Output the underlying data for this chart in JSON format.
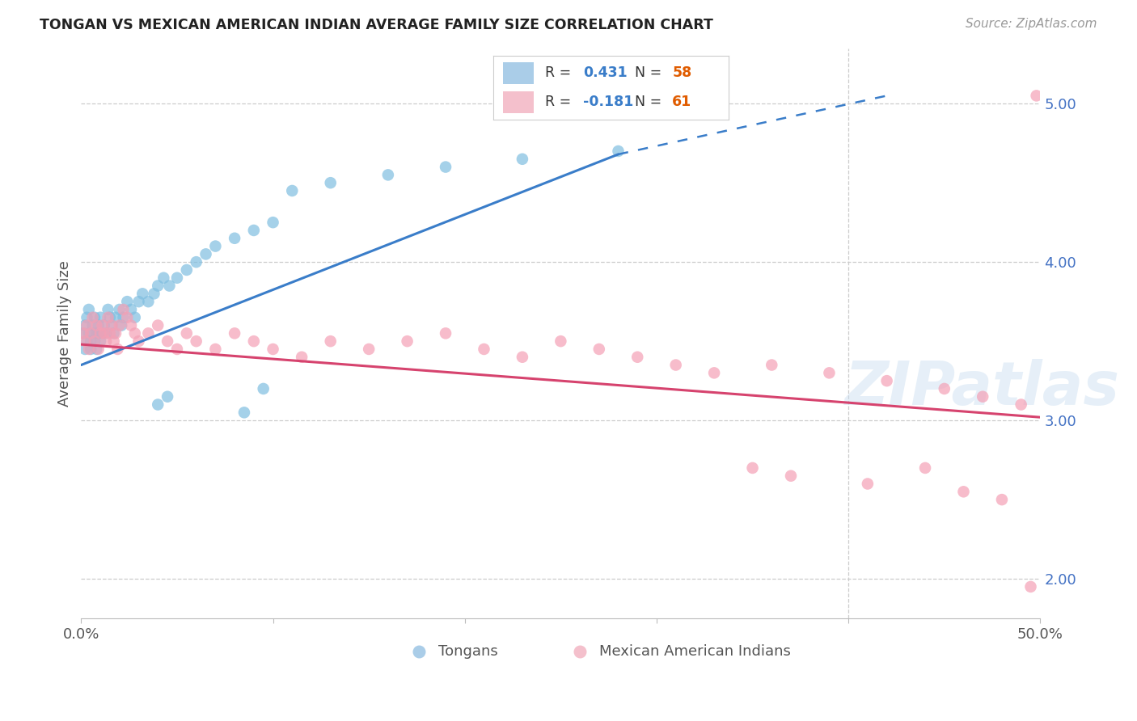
{
  "title": "TONGAN VS MEXICAN AMERICAN INDIAN AVERAGE FAMILY SIZE CORRELATION CHART",
  "source": "Source: ZipAtlas.com",
  "ylabel": "Average Family Size",
  "xlim": [
    0.0,
    0.5
  ],
  "ylim": [
    1.75,
    5.35
  ],
  "yticks": [
    2.0,
    3.0,
    4.0,
    5.0
  ],
  "xticks": [
    0.0,
    0.1,
    0.2,
    0.3,
    0.4,
    0.5
  ],
  "xticklabels": [
    "0.0%",
    "",
    "",
    "",
    "",
    "50.0%"
  ],
  "watermark": "ZIPatlas",
  "blue_color": "#7fbee0",
  "pink_color": "#f4a0b5",
  "blue_line_color": "#3a7dc9",
  "pink_line_color": "#d6436e",
  "blue_legend_color": "#aacde8",
  "pink_legend_color": "#f4c0cc",
  "r_color": "#3a7dc9",
  "n_color": "#e05c00",
  "tongans_x": [
    0.001,
    0.002,
    0.002,
    0.003,
    0.003,
    0.004,
    0.004,
    0.005,
    0.005,
    0.006,
    0.006,
    0.007,
    0.007,
    0.008,
    0.008,
    0.009,
    0.009,
    0.01,
    0.01,
    0.011,
    0.012,
    0.013,
    0.014,
    0.015,
    0.016,
    0.017,
    0.018,
    0.02,
    0.021,
    0.022,
    0.024,
    0.026,
    0.028,
    0.03,
    0.032,
    0.035,
    0.038,
    0.04,
    0.043,
    0.046,
    0.05,
    0.055,
    0.06,
    0.065,
    0.07,
    0.08,
    0.09,
    0.1,
    0.04,
    0.045,
    0.085,
    0.095,
    0.11,
    0.13,
    0.16,
    0.19,
    0.23,
    0.28
  ],
  "tongans_y": [
    3.55,
    3.6,
    3.45,
    3.5,
    3.65,
    3.55,
    3.7,
    3.5,
    3.45,
    3.6,
    3.55,
    3.65,
    3.5,
    3.55,
    3.45,
    3.6,
    3.55,
    3.5,
    3.65,
    3.55,
    3.6,
    3.55,
    3.7,
    3.65,
    3.6,
    3.55,
    3.65,
    3.7,
    3.6,
    3.65,
    3.75,
    3.7,
    3.65,
    3.75,
    3.8,
    3.75,
    3.8,
    3.85,
    3.9,
    3.85,
    3.9,
    3.95,
    4.0,
    4.05,
    4.1,
    4.15,
    4.2,
    4.25,
    3.1,
    3.15,
    3.05,
    3.2,
    4.45,
    4.5,
    4.55,
    4.6,
    4.65,
    4.7
  ],
  "mexican_x": [
    0.001,
    0.002,
    0.003,
    0.004,
    0.005,
    0.006,
    0.007,
    0.008,
    0.009,
    0.01,
    0.011,
    0.012,
    0.013,
    0.014,
    0.015,
    0.016,
    0.017,
    0.018,
    0.019,
    0.02,
    0.022,
    0.024,
    0.026,
    0.028,
    0.03,
    0.035,
    0.04,
    0.045,
    0.05,
    0.055,
    0.06,
    0.07,
    0.08,
    0.09,
    0.1,
    0.115,
    0.13,
    0.15,
    0.17,
    0.19,
    0.21,
    0.23,
    0.25,
    0.27,
    0.29,
    0.31,
    0.33,
    0.36,
    0.39,
    0.42,
    0.45,
    0.47,
    0.49,
    0.35,
    0.37,
    0.41,
    0.44,
    0.46,
    0.48,
    0.495,
    0.498
  ],
  "mexican_y": [
    3.55,
    3.5,
    3.6,
    3.45,
    3.55,
    3.65,
    3.5,
    3.6,
    3.45,
    3.55,
    3.6,
    3.55,
    3.5,
    3.65,
    3.55,
    3.6,
    3.5,
    3.55,
    3.45,
    3.6,
    3.7,
    3.65,
    3.6,
    3.55,
    3.5,
    3.55,
    3.6,
    3.5,
    3.45,
    3.55,
    3.5,
    3.45,
    3.55,
    3.5,
    3.45,
    3.4,
    3.5,
    3.45,
    3.5,
    3.55,
    3.45,
    3.4,
    3.5,
    3.45,
    3.4,
    3.35,
    3.3,
    3.35,
    3.3,
    3.25,
    3.2,
    3.15,
    3.1,
    2.7,
    2.65,
    2.6,
    2.7,
    2.55,
    2.5,
    1.95,
    5.05
  ]
}
